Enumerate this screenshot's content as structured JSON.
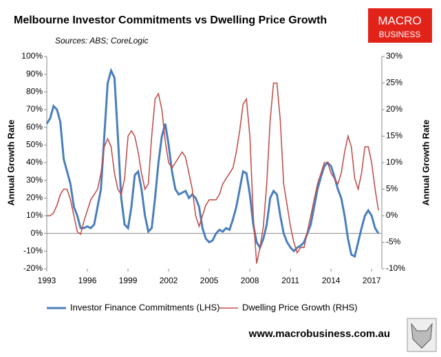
{
  "chart_data": {
    "type": "line",
    "title": "Melbourne Investor Commitments vs Dwelling Price Growth",
    "subtitle": "Sources: ABS; CoreLogic",
    "logo": [
      "MACRO",
      "BUSINESS"
    ],
    "footer": "www.macrobusiness.com.au",
    "ylabel": "Annual Growth Rate",
    "y2label": "Annual Growth Rate",
    "xlim": [
      1993,
      2017.75
    ],
    "xticks": [
      1993,
      1996,
      1999,
      2002,
      2005,
      2008,
      2011,
      2014,
      2017
    ],
    "ylim": [
      -20,
      100
    ],
    "yticks": [
      {
        "value": -20,
        "label": "-20%"
      },
      {
        "value": -10,
        "label": "-10%"
      },
      {
        "value": 0,
        "label": "0%"
      },
      {
        "value": 10,
        "label": "10%"
      },
      {
        "value": 20,
        "label": "20%"
      },
      {
        "value": 30,
        "label": "30%"
      },
      {
        "value": 40,
        "label": "40%"
      },
      {
        "value": 50,
        "label": "50%"
      },
      {
        "value": 60,
        "label": "60%"
      },
      {
        "value": 70,
        "label": "70%"
      },
      {
        "value": 80,
        "label": "80%"
      },
      {
        "value": 90,
        "label": "90%"
      },
      {
        "value": 100,
        "label": "100%"
      }
    ],
    "y2lim": [
      -10,
      30
    ],
    "y2ticks": [
      {
        "value": -10,
        "label": "-10%"
      },
      {
        "value": -5,
        "label": "-5%"
      },
      {
        "value": 0,
        "label": "0%"
      },
      {
        "value": 5,
        "label": "5%"
      },
      {
        "value": 10,
        "label": "10%"
      },
      {
        "value": 15,
        "label": "15%"
      },
      {
        "value": 20,
        "label": "20%"
      },
      {
        "value": 25,
        "label": "25%"
      },
      {
        "value": 30,
        "label": "30%"
      }
    ],
    "x": [
      1993.0,
      1993.25,
      1993.5,
      1993.75,
      1994.0,
      1994.25,
      1994.5,
      1994.75,
      1995.0,
      1995.25,
      1995.5,
      1995.75,
      1996.0,
      1996.25,
      1996.5,
      1996.75,
      1997.0,
      1997.25,
      1997.5,
      1997.75,
      1998.0,
      1998.25,
      1998.5,
      1998.75,
      1999.0,
      1999.25,
      1999.5,
      1999.75,
      2000.0,
      2000.25,
      2000.5,
      2000.75,
      2001.0,
      2001.25,
      2001.5,
      2001.75,
      2002.0,
      2002.25,
      2002.5,
      2002.75,
      2003.0,
      2003.25,
      2003.5,
      2003.75,
      2004.0,
      2004.25,
      2004.5,
      2004.75,
      2005.0,
      2005.25,
      2005.5,
      2005.75,
      2006.0,
      2006.25,
      2006.5,
      2006.75,
      2007.0,
      2007.25,
      2007.5,
      2007.75,
      2008.0,
      2008.25,
      2008.5,
      2008.75,
      2009.0,
      2009.25,
      2009.5,
      2009.75,
      2010.0,
      2010.25,
      2010.5,
      2010.75,
      2011.0,
      2011.25,
      2011.5,
      2011.75,
      2012.0,
      2012.25,
      2012.5,
      2012.75,
      2013.0,
      2013.25,
      2013.5,
      2013.75,
      2014.0,
      2014.25,
      2014.5,
      2014.75,
      2015.0,
      2015.25,
      2015.5,
      2015.75,
      2016.0,
      2016.25,
      2016.5,
      2016.75,
      2017.0,
      2017.25,
      2017.5
    ],
    "series": [
      {
        "name": "Investor Finance Commitments (LHS)",
        "color": "#4a7ebb",
        "axis": "y",
        "values": [
          62,
          65,
          72,
          70,
          63,
          42,
          35,
          28,
          15,
          10,
          3,
          3,
          4,
          3,
          5,
          15,
          25,
          55,
          85,
          92,
          88,
          55,
          20,
          5,
          3,
          15,
          33,
          35,
          25,
          10,
          1,
          3,
          20,
          40,
          55,
          62,
          50,
          35,
          25,
          22,
          23,
          24,
          20,
          22,
          20,
          15,
          3,
          -3,
          -5,
          -4,
          0,
          2,
          1,
          3,
          2,
          8,
          15,
          25,
          35,
          34,
          22,
          5,
          -5,
          -8,
          -3,
          5,
          20,
          24,
          22,
          10,
          0,
          -5,
          -8,
          -10,
          -8,
          -7,
          -5,
          0,
          5,
          15,
          25,
          32,
          38,
          40,
          38,
          32,
          25,
          20,
          10,
          -3,
          -12,
          -13,
          -5,
          3,
          10,
          13,
          10,
          3,
          0
        ]
      },
      {
        "name": "Dwelling Price Growth (RHS)",
        "color": "#c0504d",
        "axis": "y2",
        "values": [
          0,
          0,
          0.5,
          2,
          4,
          5,
          5,
          3,
          0,
          -3,
          -3.5,
          -1,
          1,
          3,
          4,
          5,
          8,
          13,
          14.5,
          13,
          8,
          5,
          4,
          7,
          15,
          16,
          15,
          12,
          8,
          5,
          6,
          15,
          22,
          23,
          20,
          14,
          10,
          9,
          10,
          11,
          12,
          11,
          8,
          5,
          0,
          -2,
          0,
          2,
          3,
          3,
          3,
          4,
          6,
          7,
          8,
          9,
          12,
          16,
          21,
          22,
          15,
          0,
          -9,
          -6,
          -2,
          6,
          18,
          25,
          25,
          18,
          6,
          2,
          -2,
          -5,
          -7,
          -6,
          -6,
          -3,
          0,
          3,
          6,
          8,
          10,
          10,
          8,
          7,
          6,
          8,
          12,
          15,
          13,
          7,
          5,
          8,
          13,
          13,
          10,
          5,
          1
        ]
      }
    ]
  }
}
